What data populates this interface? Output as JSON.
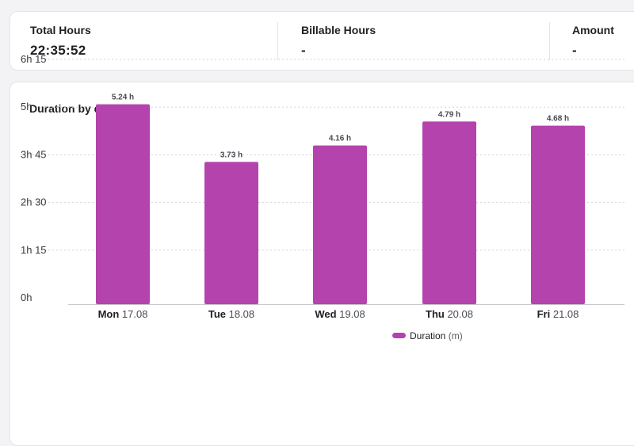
{
  "summary": {
    "total_label": "Total Hours",
    "total_value": "22:35:52",
    "billable_label": "Billable Hours",
    "billable_value": "-",
    "amount_label": "Amount",
    "amount_value": "-"
  },
  "colors": {
    "bar": "#b443ad",
    "grid": "#d4d4d8",
    "axis": "#c8c8cc"
  },
  "chart_data": {
    "type": "bar",
    "title": "Duration by day",
    "categories": [
      {
        "day": "Mon",
        "date": "17.08"
      },
      {
        "day": "Tue",
        "date": "18.08"
      },
      {
        "day": "Wed",
        "date": "19.08"
      },
      {
        "day": "Thu",
        "date": "20.08"
      },
      {
        "day": "Fri",
        "date": "21.08"
      }
    ],
    "series": [
      {
        "name": "Duration",
        "unit": "(m)",
        "values": [
          5.24,
          3.73,
          4.16,
          4.79,
          4.68
        ],
        "labels": [
          "5.24 h",
          "3.73 h",
          "4.16 h",
          "4.79 h",
          "4.68 h"
        ]
      }
    ],
    "yticks": [
      {
        "value": 0,
        "label": "0h"
      },
      {
        "value": 1.25,
        "label": "1h 15"
      },
      {
        "value": 2.5,
        "label": "2h 30"
      },
      {
        "value": 3.75,
        "label": "3h 45"
      },
      {
        "value": 5,
        "label": "5h"
      },
      {
        "value": 6.25,
        "label": "6h 15"
      }
    ],
    "ylim": [
      0,
      6.25
    ],
    "grid": true,
    "legend": "bottom-center"
  }
}
